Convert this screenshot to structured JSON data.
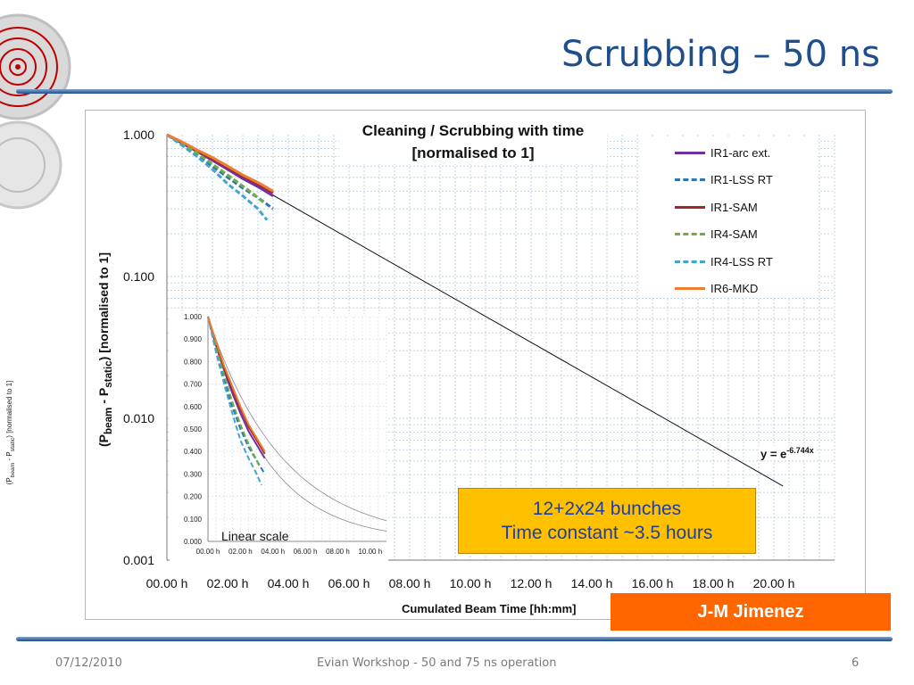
{
  "slide": {
    "title": "Scrubbing – 50 ns",
    "author": "J-M Jimenez",
    "callout": {
      "line1": "12+2x24 bunches",
      "line2": "Time constant ~3.5 hours"
    },
    "footer": {
      "date": "07/12/2010",
      "center": "Evian Workshop - 50 and 75 ns operation",
      "page": "6"
    }
  },
  "colors": {
    "title": "#1f4e8c",
    "callout_bg": "#ffc000",
    "callout_text": "#1f3fa0",
    "author_bg": "#ff6600"
  },
  "icons": {
    "logo": "lhc-logo-icon"
  },
  "chart_data": [
    {
      "type": "line",
      "title_line1": "Cleaning / Scrubbing with time",
      "title_line2": "[normalised to 1]",
      "xlabel": "Cumulated Beam Time [hh:mm]",
      "ylabel_parts": {
        "open": "(P",
        "sub1": "beam",
        "mid": " - P",
        "sub2": "static",
        "close": ") [normalised to 1]"
      },
      "yscale": "log",
      "ylim": [
        0.001,
        1
      ],
      "xlim": [
        0,
        22
      ],
      "grid": true,
      "x_ticks": [
        0,
        2,
        4,
        6,
        8,
        10,
        12,
        14,
        16,
        18,
        20
      ],
      "x_tick_labels": [
        "00.00 h",
        "02.00 h",
        "04.00 h",
        "06.00 h",
        "08.00 h",
        "10.00 h",
        "12.00 h",
        "14.00 h",
        "16.00 h",
        "18.00 h",
        "20.00 h"
      ],
      "y_ticks": [
        1,
        0.1,
        0.01,
        0.001
      ],
      "y_tick_labels": [
        "1.000",
        "0.100",
        "0.010",
        "0.001"
      ],
      "legend_position": "top-right",
      "fit": {
        "label_base": "y = e",
        "label_exp": "-6.744x",
        "x_range": [
          0,
          20.3
        ],
        "rate_per_day": 6.744
      },
      "series": [
        {
          "name": "IR1-arc ext.",
          "color": "#7030a0",
          "dash": "solid",
          "x": [
            0,
            0.5,
            1,
            1.5,
            2,
            2.5,
            3,
            3.5
          ],
          "y": [
            1.0,
            0.87,
            0.76,
            0.66,
            0.57,
            0.49,
            0.43,
            0.37
          ]
        },
        {
          "name": "IR1-LSS RT",
          "color": "#2e75b6",
          "dash": "dashed",
          "x": [
            0,
            0.5,
            1,
            1.5,
            2,
            2.5,
            3,
            3.5
          ],
          "y": [
            1.0,
            0.85,
            0.72,
            0.6,
            0.5,
            0.42,
            0.36,
            0.3
          ]
        },
        {
          "name": "IR1-SAM",
          "color": "#a0282d",
          "dash": "solid",
          "x": [
            0,
            0.5,
            1,
            1.5,
            2,
            2.5,
            3,
            3.5
          ],
          "y": [
            1.0,
            0.88,
            0.77,
            0.68,
            0.59,
            0.51,
            0.45,
            0.39
          ]
        },
        {
          "name": "IR4-SAM",
          "color": "#70ad47",
          "dash": "dashed",
          "x": [
            0,
            0.5,
            1,
            1.5,
            2,
            2.4,
            2.8,
            3.2
          ],
          "y": [
            1.0,
            0.86,
            0.74,
            0.62,
            0.52,
            0.45,
            0.39,
            0.33
          ]
        },
        {
          "name": "IR4-LSS RT",
          "color": "#41a6cf",
          "dash": "dashed",
          "x": [
            0,
            0.5,
            1,
            1.5,
            2,
            2.5,
            3,
            3.3
          ],
          "y": [
            1.0,
            0.84,
            0.7,
            0.57,
            0.45,
            0.37,
            0.3,
            0.25
          ]
        },
        {
          "name": "IR6-MKD",
          "color": "#ed7d31",
          "dash": "solid",
          "x": [
            0,
            0.5,
            1,
            1.5,
            2,
            2.5,
            3,
            3.5
          ],
          "y": [
            1.0,
            0.89,
            0.78,
            0.69,
            0.6,
            0.52,
            0.46,
            0.4
          ]
        }
      ]
    },
    {
      "type": "line",
      "label": "Linear scale",
      "ylabel_parts": {
        "open": "(P",
        "sub1": "beam",
        "mid": " - P",
        "sub2": "static",
        "close": ") [normalised to 1]"
      },
      "xlim": [
        0,
        11
      ],
      "ylim": [
        0,
        1
      ],
      "x_ticks": [
        0,
        2,
        4,
        6,
        8,
        10
      ],
      "x_tick_labels": [
        "00.00 h",
        "02.00 h",
        "04.00 h",
        "06.00 h",
        "08.00 h",
        "10.00 h"
      ],
      "y_ticks": [
        0,
        0.1,
        0.2,
        0.3,
        0.4,
        0.5,
        0.6,
        0.7,
        0.8,
        0.9,
        1.0
      ],
      "y_tick_labels": [
        "0.000",
        "0.100",
        "0.200",
        "0.300",
        "0.400",
        "0.500",
        "0.600",
        "0.700",
        "0.800",
        "0.900",
        "1.000"
      ],
      "reference_curves": [
        {
          "rate_per_day": 6.744
        },
        {
          "rate_per_day": 5.2
        }
      ],
      "series_from_main": true
    }
  ]
}
